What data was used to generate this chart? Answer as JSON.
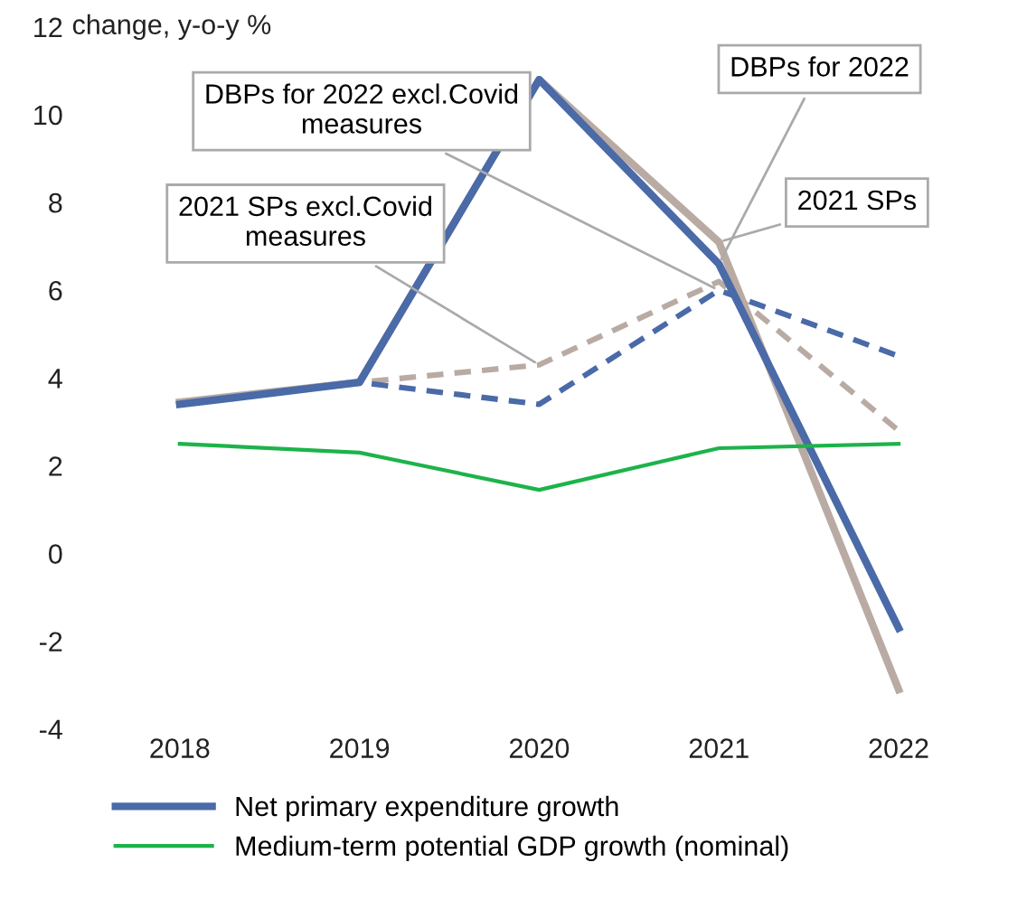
{
  "chart_data": {
    "type": "line",
    "ylabel": "change, y-o-y %",
    "categories": [
      "2018",
      "2019",
      "2020",
      "2021",
      "2022"
    ],
    "series": [
      {
        "name": null,
        "color": "#b9aba3",
        "values": [
          3.45,
          3.9,
          4.3,
          6.2,
          2.8
        ],
        "line_style": "dashed"
      },
      {
        "name": null,
        "color": "#4a6aa8",
        "values": [
          3.4,
          3.9,
          3.4,
          6.0,
          4.5
        ],
        "line_style": "dashed"
      },
      {
        "name": null,
        "color": "#b9aba3",
        "values": [
          3.45,
          3.9,
          10.8,
          7.1,
          -3.1
        ],
        "line_style": "solid"
      },
      {
        "name": "Net primary expenditure growth",
        "color": "#4a6aa8",
        "values": [
          3.4,
          3.9,
          10.8,
          6.6,
          -1.7
        ],
        "line_style": "solid"
      },
      {
        "name": "Medium-term potential GDP growth (nominal)",
        "color": "#1db34a",
        "values": [
          2.5,
          2.3,
          1.45,
          2.4,
          2.5
        ],
        "line_style": "solid"
      }
    ],
    "annotations": [
      {
        "text": "DBPs for 2022",
        "x": "2021",
        "y": 6.6
      },
      {
        "text": "DBPs for 2022 excl.Covid\nmeasures",
        "x": "2021",
        "y": 6.0
      },
      {
        "text": "2021 SPs",
        "x": "2021",
        "y": 7.1
      },
      {
        "text": "2021 SPs excl.Covid\nmeasures",
        "x": "2020",
        "y": 4.3
      }
    ],
    "ylim": [
      -4,
      12
    ],
    "yticks": [
      -4,
      -2,
      0,
      2,
      4,
      6,
      8,
      10,
      12
    ],
    "grid": false,
    "legend": "bottom",
    "marker": "none"
  }
}
